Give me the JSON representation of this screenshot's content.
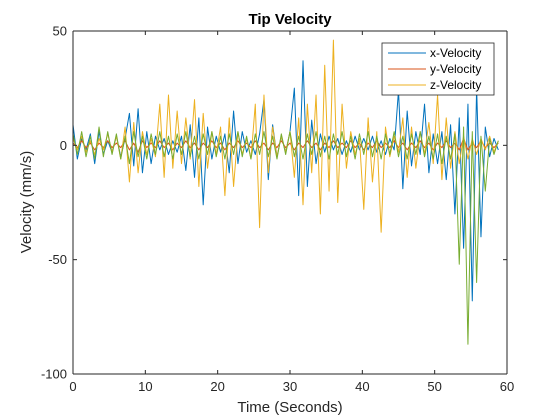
{
  "chart_data": {
    "type": "line",
    "title": "Tip Velocity",
    "xlabel": "Time (Seconds)",
    "ylabel": "Velocity (mm/s)",
    "xlim": [
      0,
      60
    ],
    "ylim": [
      -100,
      50
    ],
    "xticks": [
      "0",
      "10",
      "20",
      "30",
      "40",
      "50",
      "60"
    ],
    "yticks": [
      "-100",
      "-50",
      "0",
      "50"
    ],
    "grid": false,
    "legend_position": "top-right",
    "series": [
      {
        "name": "x-Velocity",
        "color": "#0072BD",
        "x": [
          0,
          0.6,
          1.2,
          1.8,
          2.4,
          3,
          3.6,
          4.2,
          4.8,
          5.4,
          6,
          6.6,
          7.2,
          7.8,
          8.4,
          9,
          9.6,
          10.2,
          10.8,
          11.4,
          12,
          12.6,
          13.2,
          13.8,
          14.4,
          15,
          15.6,
          16.2,
          16.8,
          17.4,
          18,
          18.6,
          19.2,
          19.8,
          20.4,
          21,
          21.6,
          22.2,
          22.8,
          23.4,
          24,
          24.6,
          25.2,
          25.8,
          26.4,
          27,
          27.6,
          28.2,
          28.8,
          29.4,
          30,
          30.6,
          31.2,
          31.8,
          32.4,
          33,
          33.6,
          34.2,
          34.8,
          35.4,
          36,
          36.6,
          37.2,
          37.8,
          38.4,
          39,
          39.6,
          40.2,
          40.8,
          41.4,
          42,
          42.6,
          43.2,
          43.8,
          44.4,
          45,
          45.6,
          46.2,
          46.8,
          47.4,
          48,
          48.6,
          49.2,
          49.8,
          50.4,
          51,
          51.6,
          52.2,
          52.8,
          53.4,
          54,
          54.6,
          55.2,
          55.8,
          56.4,
          57,
          57.6,
          58.2,
          58.8
        ],
        "values": [
          9,
          -6,
          3,
          -2,
          5,
          -8,
          6,
          -4,
          2,
          -3,
          4,
          -5,
          3,
          14,
          -9,
          16,
          -12,
          6,
          -8,
          4,
          -2,
          3,
          -4,
          2,
          -3,
          4,
          -11,
          9,
          -14,
          12,
          -26,
          8,
          -6,
          4,
          -3,
          5,
          -12,
          15,
          -8,
          6,
          -3,
          2,
          -4,
          5,
          20,
          -15,
          9,
          -5,
          4,
          -3,
          6,
          25,
          -22,
          37,
          -18,
          11,
          -8,
          5,
          -3,
          4,
          -2,
          3,
          -4,
          2,
          -3,
          4,
          -2,
          3,
          -2,
          4,
          -3,
          2,
          -4,
          3,
          -2,
          24,
          -19,
          15,
          -9,
          6,
          -4,
          18,
          -12,
          5,
          -8,
          6,
          -15,
          9,
          -30,
          12,
          -45,
          18,
          -68,
          25,
          -40,
          8,
          -5,
          3,
          -2
        ]
      },
      {
        "name": "y-Velocity",
        "color": "#D95319",
        "x": [
          0,
          0.6,
          1.2,
          1.8,
          2.4,
          3,
          3.6,
          4.2,
          4.8,
          5.4,
          6,
          6.6,
          7.2,
          7.8,
          8.4,
          9,
          9.6,
          10.2,
          10.8,
          11.4,
          12,
          12.6,
          13.2,
          13.8,
          14.4,
          15,
          15.6,
          16.2,
          16.8,
          17.4,
          18,
          18.6,
          19.2,
          19.8,
          20.4,
          21,
          21.6,
          22.2,
          22.8,
          23.4,
          24,
          24.6,
          25.2,
          25.8,
          26.4,
          27,
          27.6,
          28.2,
          28.8,
          29.4,
          30,
          30.6,
          31.2,
          31.8,
          32.4,
          33,
          33.6,
          34.2,
          34.8,
          35.4,
          36,
          36.6,
          37.2,
          37.8,
          38.4,
          39,
          39.6,
          40.2,
          40.8,
          41.4,
          42,
          42.6,
          43.2,
          43.8,
          44.4,
          45,
          45.6,
          46.2,
          46.8,
          47.4,
          48,
          48.6,
          49.2,
          49.8,
          50.4,
          51,
          51.6,
          52.2,
          52.8,
          53.4,
          54,
          54.6,
          55.2,
          55.8,
          56.4,
          57,
          57.6,
          58.2,
          58.8
        ],
        "values": [
          1,
          -1,
          2,
          -1,
          1,
          -2,
          1,
          -1,
          2,
          -1,
          1,
          -1,
          2,
          -2,
          1,
          -3,
          2,
          -1,
          1,
          -1,
          2,
          -1,
          1,
          -2,
          1,
          -1,
          2,
          -1,
          1,
          -2,
          1,
          -1,
          2,
          -1,
          1,
          -2,
          1,
          -1,
          2,
          -1,
          1,
          -1,
          2,
          -1,
          1,
          -2,
          1,
          -1,
          2,
          -1,
          1,
          -2,
          1,
          -1,
          2,
          -1,
          1,
          -2,
          1,
          -1,
          2,
          -1,
          1,
          -1,
          2,
          -1,
          1,
          -2,
          1,
          -1,
          2,
          -1,
          1,
          -1,
          2,
          -1,
          1,
          -2,
          1,
          -1,
          2,
          -1,
          1,
          -2,
          1,
          -1,
          2,
          -1,
          1,
          -2,
          3,
          -2,
          1,
          -1,
          2,
          -1,
          1,
          -1,
          1
        ]
      },
      {
        "name": "z-Velocity",
        "color": "#EDB120",
        "x": [
          0,
          0.6,
          1.2,
          1.8,
          2.4,
          3,
          3.6,
          4.2,
          4.8,
          5.4,
          6,
          6.6,
          7.2,
          7.8,
          8.4,
          9,
          9.6,
          10.2,
          10.8,
          11.4,
          12,
          12.6,
          13.2,
          13.8,
          14.4,
          15,
          15.6,
          16.2,
          16.8,
          17.4,
          18,
          18.6,
          19.2,
          19.8,
          20.4,
          21,
          21.6,
          22.2,
          22.8,
          23.4,
          24,
          24.6,
          25.2,
          25.8,
          26.4,
          27,
          27.6,
          28.2,
          28.8,
          29.4,
          30,
          30.6,
          31.2,
          31.8,
          32.4,
          33,
          33.6,
          34.2,
          34.8,
          35.4,
          36,
          36.6,
          37.2,
          37.8,
          38.4,
          39,
          39.6,
          40.2,
          40.8,
          41.4,
          42,
          42.6,
          43.2,
          43.8,
          44.4,
          45,
          45.6,
          46.2,
          46.8,
          47.4,
          48,
          48.6,
          49.2,
          49.8,
          50.4,
          51,
          51.6,
          52.2,
          52.8,
          53.4,
          54,
          54.6,
          55.2,
          55.8,
          56.4,
          57,
          57.6,
          58.2,
          58.8
        ],
        "values": [
          3,
          -2,
          4,
          -3,
          2,
          -4,
          3,
          -2,
          5,
          -3,
          4,
          -6,
          8,
          -16,
          10,
          -12,
          6,
          -4,
          3,
          -5,
          18,
          -14,
          22,
          -10,
          15,
          -8,
          12,
          -6,
          20,
          -18,
          14,
          -10,
          6,
          -4,
          8,
          -22,
          12,
          -18,
          6,
          -4,
          3,
          -6,
          18,
          -36,
          22,
          -12,
          8,
          -5,
          4,
          -3,
          6,
          -14,
          12,
          -26,
          18,
          -12,
          22,
          -30,
          35,
          -20,
          46,
          -25,
          18,
          -10,
          6,
          -4,
          3,
          -28,
          12,
          -16,
          6,
          -38,
          8,
          -5,
          4,
          -3,
          12,
          -14,
          8,
          -10,
          6,
          -4,
          10,
          -8,
          22,
          -15,
          12,
          -10,
          6,
          -8,
          4,
          -6,
          3,
          -4,
          3,
          -2,
          4,
          -3,
          2
        ]
      },
      {
        "name": "",
        "color": "#77AC30",
        "x": [
          0,
          0.6,
          1.2,
          1.8,
          2.4,
          3,
          3.6,
          4.2,
          4.8,
          5.4,
          6,
          6.6,
          7.2,
          7.8,
          8.4,
          9,
          9.6,
          10.2,
          10.8,
          11.4,
          12,
          12.6,
          13.2,
          13.8,
          14.4,
          15,
          15.6,
          16.2,
          16.8,
          17.4,
          18,
          18.6,
          19.2,
          19.8,
          20.4,
          21,
          21.6,
          22.2,
          22.8,
          23.4,
          24,
          24.6,
          25.2,
          25.8,
          26.4,
          27,
          27.6,
          28.2,
          28.8,
          29.4,
          30,
          30.6,
          31.2,
          31.8,
          32.4,
          33,
          33.6,
          34.2,
          34.8,
          35.4,
          36,
          36.6,
          37.2,
          37.8,
          38.4,
          39,
          39.6,
          40.2,
          40.8,
          41.4,
          42,
          42.6,
          43.2,
          43.8,
          44.4,
          45,
          45.6,
          46.2,
          46.8,
          47.4,
          48,
          48.6,
          49.2,
          49.8,
          50.4,
          51,
          51.6,
          52.2,
          52.8,
          53.4,
          54,
          54.6,
          55.2,
          55.8,
          56.4,
          57,
          57.6,
          58.2,
          58.8
        ],
        "values": [
          5,
          -4,
          6,
          -5,
          4,
          -6,
          8,
          -5,
          6,
          -4,
          5,
          -6,
          4,
          -8,
          6,
          -5,
          4,
          -6,
          5,
          -4,
          6,
          -5,
          4,
          -6,
          5,
          -4,
          6,
          -5,
          4,
          -6,
          5,
          -4,
          6,
          -5,
          4,
          -6,
          5,
          -4,
          6,
          -5,
          4,
          -6,
          5,
          -4,
          6,
          -5,
          4,
          -6,
          5,
          -4,
          6,
          -5,
          4,
          -6,
          5,
          -4,
          6,
          -5,
          4,
          -6,
          5,
          -4,
          6,
          -5,
          4,
          -6,
          5,
          -4,
          6,
          -5,
          4,
          -6,
          5,
          -4,
          6,
          -5,
          4,
          -6,
          5,
          -4,
          6,
          -5,
          4,
          -6,
          5,
          -8,
          4,
          -6,
          5,
          -52,
          8,
          -87,
          6,
          -60,
          4,
          -20,
          3,
          -4,
          2
        ]
      }
    ]
  }
}
